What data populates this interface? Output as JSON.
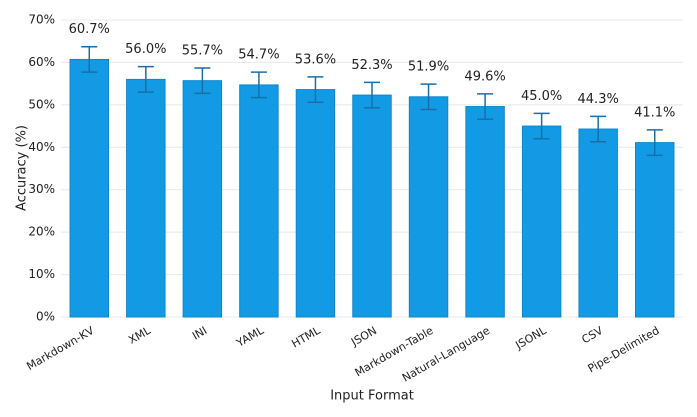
{
  "chart_data": {
    "type": "bar",
    "x_label": "Input Format",
    "y_label": "Accuracy (%)",
    "categories": [
      "Markdown-KV",
      "XML",
      "INI",
      "YAML",
      "HTML",
      "JSON",
      "Markdown-Table",
      "Natural-Language",
      "JSONL",
      "CSV",
      "Pipe-Delimited"
    ],
    "values": [
      60.7,
      56.0,
      55.7,
      54.7,
      53.6,
      52.3,
      51.9,
      49.6,
      45.0,
      44.3,
      41.1
    ],
    "value_labels": [
      "60.7%",
      "56.0%",
      "55.7%",
      "54.7%",
      "53.6%",
      "52.3%",
      "51.9%",
      "49.6%",
      "45.0%",
      "44.3%",
      "41.1%"
    ],
    "errors": [
      3.0,
      3.0,
      3.0,
      3.0,
      3.0,
      3.0,
      3.0,
      3.0,
      3.0,
      3.0,
      3.0
    ],
    "color": "#129be4",
    "error_color": "#1a6ea8",
    "ylim": [
      0,
      70
    ],
    "yticks": [
      {
        "value": 0,
        "label": "0%"
      },
      {
        "value": 10,
        "label": "10%"
      },
      {
        "value": 20,
        "label": "20%"
      },
      {
        "value": 30,
        "label": "30%"
      },
      {
        "value": 40,
        "label": "40%"
      },
      {
        "value": 50,
        "label": "50%"
      },
      {
        "value": 60,
        "label": "60%"
      },
      {
        "value": 70,
        "label": "70%"
      }
    ],
    "grid": true
  }
}
